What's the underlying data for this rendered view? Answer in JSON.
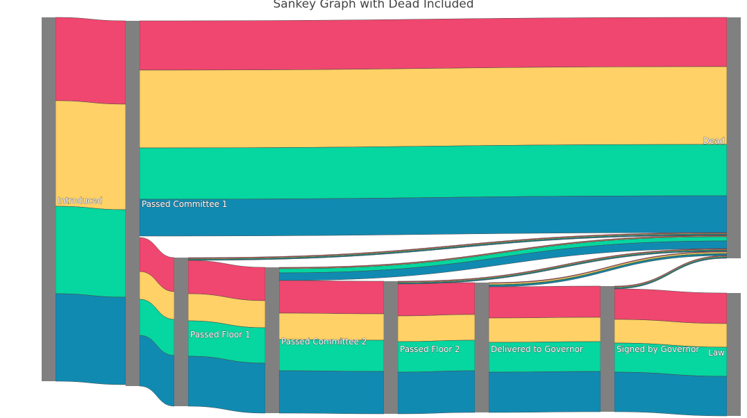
{
  "chart_data": {
    "type": "sankey",
    "title": "Sankey Graph with Dead Included",
    "node_color": "#808080",
    "series": [
      {
        "name": "",
        "color": "#ef476f"
      },
      {
        "name": "",
        "color": "#ffd166"
      },
      {
        "name": "",
        "color": "#06d6a0"
      },
      {
        "name": "",
        "color": "#118ab2"
      }
    ],
    "nodes": [
      "Introduced",
      "Passed Committee 1",
      "Passed Floor 1",
      "Passed Committee 2",
      "Passed Floor 2",
      "Delivered to Governor",
      "Signed by Governor",
      "Law",
      "Dead"
    ],
    "flows": [
      {
        "source": "Introduced",
        "target": "Passed Committee 1",
        "values": [
          120,
          152,
          126,
          126
        ]
      },
      {
        "source": "Passed Committee 1",
        "target": "Dead",
        "values": [
          71,
          112,
          74,
          53
        ]
      },
      {
        "source": "Passed Committee 1",
        "target": "Passed Floor 1",
        "values": [
          49,
          40,
          52,
          73
        ]
      },
      {
        "source": "Passed Floor 1",
        "target": "Dead",
        "values": [
          1,
          1,
          1,
          1
        ]
      },
      {
        "source": "Passed Floor 1",
        "target": "Passed Committee 2",
        "values": [
          48,
          39,
          51,
          72
        ]
      },
      {
        "source": "Passed Committee 2",
        "target": "Dead",
        "values": [
          1,
          1,
          6,
          11
        ]
      },
      {
        "source": "Passed Committee 2",
        "target": "Passed Floor 2",
        "values": [
          47,
          38,
          45,
          61
        ]
      },
      {
        "source": "Passed Floor 2",
        "target": "Dead",
        "values": [
          1,
          1,
          1,
          1
        ]
      },
      {
        "source": "Passed Floor 2",
        "target": "Delivered to Governor",
        "values": [
          46,
          37,
          44,
          60
        ]
      },
      {
        "source": "Delivered to Governor",
        "target": "Dead",
        "values": [
          1,
          2,
          1,
          2
        ]
      },
      {
        "source": "Delivered to Governor",
        "target": "Signed by Governor",
        "values": [
          45,
          35,
          43,
          58
        ]
      },
      {
        "source": "Signed by Governor",
        "target": "Dead",
        "values": [
          1,
          1,
          1,
          1
        ]
      },
      {
        "source": "Signed by Governor",
        "target": "Law",
        "values": [
          44,
          34,
          42,
          57
        ]
      }
    ]
  }
}
